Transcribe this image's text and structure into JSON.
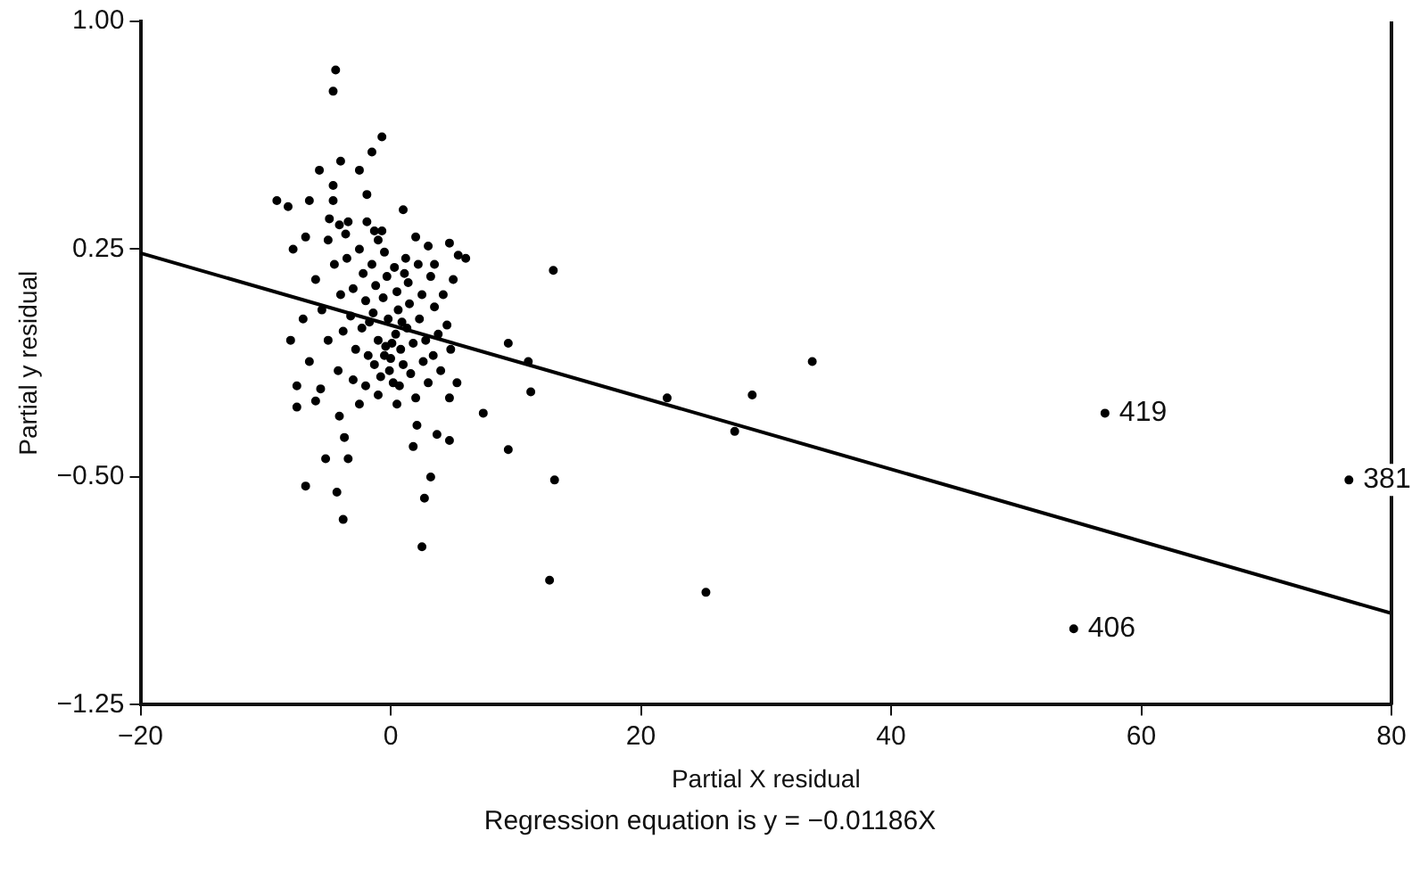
{
  "chart_data": {
    "type": "scatter",
    "xlabel": "Partial X residual",
    "ylabel": "Partial y residual",
    "xlim": [
      -20,
      80
    ],
    "xticks": [
      {
        "value": -20,
        "label": "−20"
      },
      0,
      20,
      40,
      60,
      80
    ],
    "ylim": [
      -1.25,
      1.0
    ],
    "yticks": [
      {
        "value": -1.25,
        "label": "−1.25"
      },
      {
        "value": -0.5,
        "label": "−0.50"
      },
      {
        "value": 0.25,
        "label": "0.25"
      },
      {
        "value": 1.0,
        "label": "1.00"
      }
    ],
    "grid": false,
    "legend": false,
    "marker": "circle",
    "series": [
      {
        "type": "scatter",
        "color": "#000000",
        "x": [
          57.1,
          76.6,
          54.6,
          22.1,
          28.9,
          27.5,
          33.7,
          25.2,
          -4.4,
          -4.6,
          -0.7,
          -1.5,
          -4.0,
          -5.7,
          -2.5,
          -4.6,
          -1.9,
          -9.1,
          -8.2,
          -6.5,
          -4.6,
          1.0,
          -4.9,
          -4.1,
          -3.4,
          -1.9,
          -1.3,
          13.0,
          9.4,
          11.0,
          11.2,
          7.4,
          9.4,
          13.1,
          4.7,
          3.7,
          1.8,
          2.1,
          3.2,
          2.7,
          2.5,
          -3.8,
          -4.3,
          -6.8,
          -3.4,
          -5.2,
          -3.7,
          -4.1,
          -7.5,
          -5.6,
          4.7,
          5.3,
          12.7,
          4.7,
          5.4,
          6.0,
          3.5,
          -7.8,
          -6.8,
          -6,
          -5.5,
          -5,
          -6.5,
          -7,
          -4.5,
          -4,
          -3.8,
          -4.2,
          -3.5,
          -3,
          -3.2,
          -2.8,
          -3,
          -2.5,
          -2.2,
          -2,
          -2.3,
          -1.8,
          -2,
          -1.5,
          -1.2,
          -1.4,
          -1,
          -1.3,
          -0.8,
          -1,
          -0.5,
          -0.3,
          -0.6,
          -0.2,
          -0.4,
          0,
          -0.1,
          0.2,
          0.3,
          0.5,
          0.6,
          0.4,
          0.8,
          1,
          0.7,
          1.2,
          1.4,
          1.5,
          1.3,
          1.8,
          1.6,
          2,
          2.2,
          2.5,
          2.3,
          2.8,
          2.6,
          3,
          3.2,
          3.5,
          3.8,
          3.4,
          4,
          4.2,
          4.5,
          4.8,
          5,
          -7.5,
          -6,
          -5,
          -1,
          0.5,
          -2.5,
          -0.5,
          0.1,
          0.9,
          -1.7,
          1.1,
          -0.7,
          2,
          -3.6,
          3,
          -8
        ],
        "values": [
          -0.29,
          -0.51,
          -1.0,
          -0.24,
          -0.23,
          -0.35,
          -0.12,
          -0.88,
          0.84,
          0.77,
          0.62,
          0.57,
          0.54,
          0.51,
          0.51,
          0.46,
          0.43,
          0.41,
          0.39,
          0.41,
          0.41,
          0.38,
          0.35,
          0.33,
          0.34,
          0.34,
          0.31,
          0.18,
          -0.06,
          -0.12,
          -0.22,
          -0.29,
          -0.41,
          -0.51,
          -0.38,
          -0.36,
          -0.4,
          -0.33,
          -0.5,
          -0.57,
          -0.73,
          -0.64,
          -0.55,
          -0.53,
          -0.44,
          -0.44,
          -0.37,
          -0.3,
          -0.27,
          -0.21,
          -0.24,
          -0.19,
          -0.84,
          0.27,
          0.23,
          0.22,
          0.2,
          0.25,
          0.29,
          0.15,
          0.05,
          -0.05,
          -0.12,
          0.02,
          0.2,
          0.1,
          -0.02,
          -0.15,
          0.22,
          0.12,
          0.03,
          -0.08,
          -0.18,
          0.25,
          0.17,
          0.08,
          -0.01,
          -0.1,
          -0.2,
          0.2,
          0.13,
          0.04,
          -0.05,
          -0.13,
          -0.17,
          -0.23,
          0.24,
          0.16,
          0.09,
          0.02,
          -0.07,
          -0.11,
          -0.15,
          -0.19,
          0.19,
          0.11,
          0.05,
          -0.03,
          -0.08,
          -0.13,
          -0.2,
          0.22,
          0.14,
          0.07,
          -0.01,
          -0.06,
          -0.16,
          -0.24,
          0.2,
          0.1,
          0.02,
          -0.05,
          -0.12,
          -0.19,
          0.16,
          0.06,
          -0.03,
          -0.1,
          -0.15,
          0.1,
          0.0,
          -0.08,
          0.15,
          -0.2,
          -0.25,
          0.28,
          0.28,
          -0.26,
          -0.26,
          -0.1,
          -0.06,
          0.01,
          0.01,
          0.17,
          0.31,
          0.29,
          0.3,
          0.26,
          -0.05
        ]
      },
      {
        "type": "line",
        "color": "#000000",
        "marker": "none",
        "line_style": "solid",
        "x": [
          -20,
          80
        ],
        "values": [
          0.237,
          -0.949
        ]
      }
    ],
    "annotations": [
      {
        "text": "419",
        "x": 57.1,
        "y": -0.29
      },
      {
        "text": "381",
        "x": 76.6,
        "y": -0.51
      },
      {
        "text": "406",
        "x": 54.6,
        "y": -1.0
      },
      "Regression equation is y = −0.01186X"
    ]
  }
}
